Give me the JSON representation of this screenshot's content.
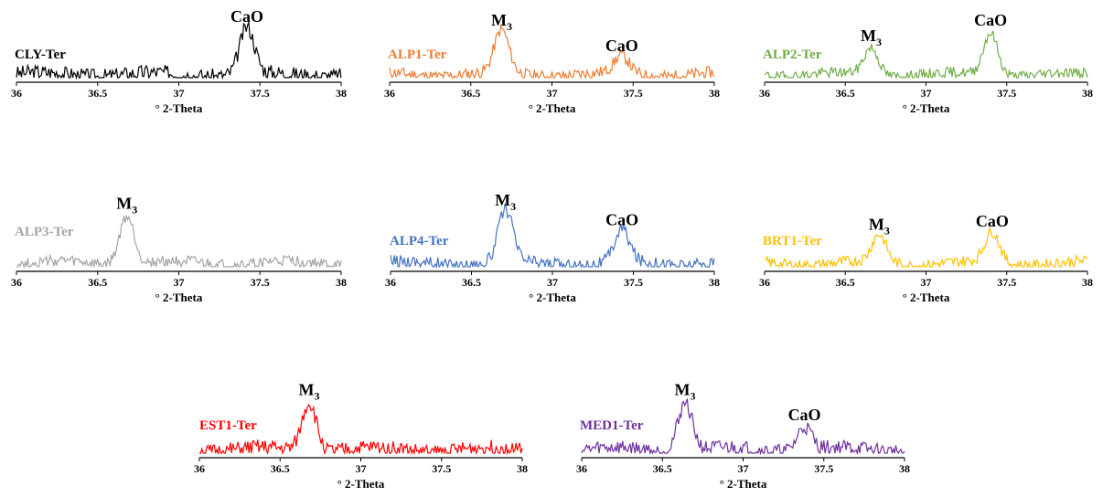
{
  "chart_data": [
    {
      "type": "line",
      "label": "CLY-Ter",
      "color": "#000000",
      "xlabel": "° 2-Theta",
      "xticks": [
        "36",
        "36.5",
        "37",
        "37.5",
        "38"
      ],
      "xlim": [
        36,
        38
      ],
      "peaks": [
        {
          "base": "CaO",
          "sub": "",
          "x": 37.42,
          "height": 0.85
        }
      ],
      "noise": {
        "level": 0.18,
        "seed": 3
      }
    },
    {
      "type": "line",
      "label": "ALP1-Ter",
      "color": "#ED7D31",
      "xlabel": "° 2-Theta",
      "xticks": [
        "36",
        "36.5",
        "37",
        "37.5",
        "38"
      ],
      "xlim": [
        36,
        38
      ],
      "peaks": [
        {
          "base": "M",
          "sub": "3",
          "x": 36.69,
          "height": 0.78
        },
        {
          "base": "CaO",
          "sub": "",
          "x": 37.43,
          "height": 0.32
        }
      ],
      "noise": {
        "level": 0.14,
        "seed": 11
      }
    },
    {
      "type": "line",
      "label": "ALP2-Ter",
      "color": "#70AD47",
      "xlabel": "° 2-Theta",
      "xticks": [
        "36",
        "36.5",
        "37",
        "37.5",
        "38"
      ],
      "xlim": [
        36,
        38
      ],
      "peaks": [
        {
          "base": "M",
          "sub": "3",
          "x": 36.66,
          "height": 0.5
        },
        {
          "base": "CaO",
          "sub": "",
          "x": 37.4,
          "height": 0.78
        }
      ],
      "noise": {
        "level": 0.12,
        "seed": 19
      }
    },
    {
      "type": "line",
      "label": "ALP3-Ter",
      "color": "#A5A5A5",
      "xlabel": "° 2-Theta",
      "xticks": [
        "36",
        "36.5",
        "37",
        "37.5",
        "38"
      ],
      "xlim": [
        36,
        38
      ],
      "peaks": [
        {
          "base": "M",
          "sub": "3",
          "x": 36.68,
          "height": 0.82
        }
      ],
      "noise": {
        "level": 0.12,
        "seed": 27
      }
    },
    {
      "type": "line",
      "label": "ALP4-Ter",
      "color": "#4472C4",
      "xlabel": "° 2-Theta",
      "xticks": [
        "36",
        "36.5",
        "37",
        "37.5",
        "38"
      ],
      "xlim": [
        36,
        38
      ],
      "peaks": [
        {
          "base": "M",
          "sub": "3",
          "x": 36.71,
          "height": 0.88
        },
        {
          "base": "CaO",
          "sub": "",
          "x": 37.43,
          "height": 0.55
        }
      ],
      "noise": {
        "level": 0.14,
        "seed": 35
      }
    },
    {
      "type": "line",
      "label": "BRT1-Ter",
      "color": "#FFC000",
      "xlabel": "° 2-Theta",
      "xticks": [
        "36",
        "36.5",
        "37",
        "37.5",
        "38"
      ],
      "xlim": [
        36,
        38
      ],
      "peaks": [
        {
          "base": "M",
          "sub": "3",
          "x": 36.71,
          "height": 0.47
        },
        {
          "base": "CaO",
          "sub": "",
          "x": 37.41,
          "height": 0.52
        }
      ],
      "noise": {
        "level": 0.12,
        "seed": 43
      }
    },
    {
      "type": "line",
      "label": "EST1-Ter",
      "color": "#FF0000",
      "xlabel": "° 2-Theta",
      "xticks": [
        "36",
        "36.5",
        "37",
        "37.5",
        "38"
      ],
      "xlim": [
        36,
        38
      ],
      "peaks": [
        {
          "base": "M",
          "sub": "3",
          "x": 36.68,
          "height": 0.82
        }
      ],
      "noise": {
        "level": 0.16,
        "seed": 51
      }
    },
    {
      "type": "line",
      "label": "MED1-Ter",
      "color": "#7030A0",
      "xlabel": "° 2-Theta",
      "xticks": [
        "36",
        "36.5",
        "37",
        "37.5",
        "38"
      ],
      "xlim": [
        36,
        38
      ],
      "peaks": [
        {
          "base": "M",
          "sub": "3",
          "x": 36.64,
          "height": 0.82
        },
        {
          "base": "CaO",
          "sub": "",
          "x": 37.38,
          "height": 0.4
        }
      ],
      "noise": {
        "level": 0.16,
        "seed": 59
      }
    }
  ]
}
